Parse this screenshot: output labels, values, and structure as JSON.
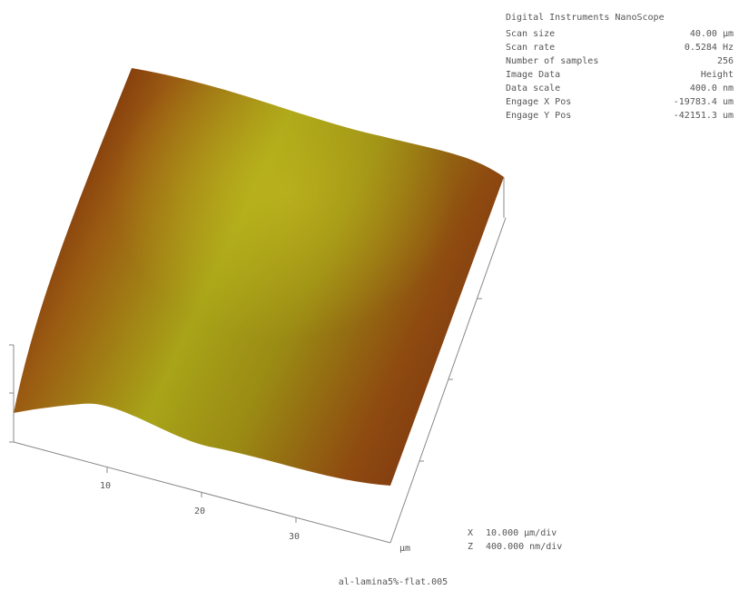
{
  "header": {
    "title": "Digital Instruments NanoScope",
    "rows": [
      [
        "Scan size",
        "40.00 µm"
      ],
      [
        "Scan rate",
        "0.5284 Hz"
      ],
      [
        "Number of samples",
        "256"
      ],
      [
        "Image Data",
        "Height"
      ],
      [
        "Data scale",
        "400.0 nm"
      ],
      [
        "Engage X Pos",
        "-19783.4 um"
      ],
      [
        "Engage Y Pos",
        "-42151.3 um"
      ]
    ]
  },
  "axis": {
    "ticks": [
      "10",
      "20",
      "30"
    ],
    "unit": "µm"
  },
  "scale": {
    "x": {
      "axis": "X",
      "label": "10.000 µm/div"
    },
    "z": {
      "axis": "Z",
      "label": "400.000 nm/div"
    }
  },
  "filename": "al-lamina5%-flat.005"
}
